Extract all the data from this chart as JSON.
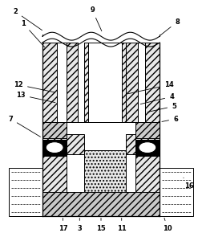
{
  "bg_color": "#ffffff",
  "lc": "#000000",
  "fig_width": 2.53,
  "fig_height": 3.0,
  "dpi": 100,
  "lw": 0.7
}
